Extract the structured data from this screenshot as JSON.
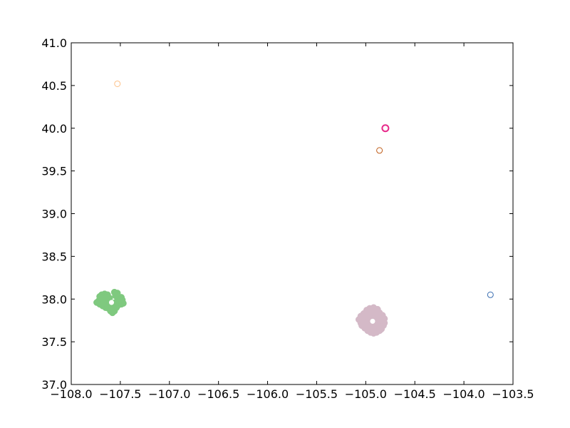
{
  "chart_data": {
    "type": "scatter",
    "title": "",
    "xlabel": "",
    "ylabel": "",
    "xlim": [
      -108.0,
      -103.5
    ],
    "ylim": [
      37.0,
      41.0
    ],
    "xticks": [
      -108.0,
      -107.5,
      -107.0,
      -106.5,
      -106.0,
      -105.5,
      -105.0,
      -104.5,
      -104.0,
      -103.5
    ],
    "yticks": [
      37.0,
      37.5,
      38.0,
      38.5,
      39.0,
      39.5,
      40.0,
      40.5,
      41.0
    ],
    "xtick_labels": [
      "−108.0",
      "−107.5",
      "−107.0",
      "−106.5",
      "−106.0",
      "−105.5",
      "−105.0",
      "−104.5",
      "−104.0",
      "−103.5"
    ],
    "ytick_labels": [
      "37.0",
      "37.5",
      "38.0",
      "38.5",
      "39.0",
      "39.5",
      "40.0",
      "40.5",
      "41.0"
    ],
    "grid": false,
    "legend": "none",
    "series": [
      {
        "color": "#7fc97f",
        "filled": true,
        "points": [
          [
            -107.69,
            38.05
          ],
          [
            -107.66,
            38.06
          ],
          [
            -107.63,
            38.05
          ],
          [
            -107.7,
            38.01
          ],
          [
            -107.72,
            37.98
          ],
          [
            -107.74,
            37.96
          ],
          [
            -107.71,
            37.94
          ],
          [
            -107.68,
            37.92
          ],
          [
            -107.65,
            37.9
          ],
          [
            -107.62,
            37.89
          ],
          [
            -107.6,
            37.86
          ],
          [
            -107.58,
            37.84
          ],
          [
            -107.56,
            37.86
          ],
          [
            -107.54,
            37.9
          ],
          [
            -107.52,
            37.93
          ],
          [
            -107.49,
            37.94
          ],
          [
            -107.47,
            37.95
          ],
          [
            -107.48,
            37.99
          ],
          [
            -107.49,
            38.02
          ],
          [
            -107.51,
            38.0
          ],
          [
            -107.53,
            37.98
          ],
          [
            -107.55,
            38.04
          ],
          [
            -107.53,
            38.07
          ],
          [
            -107.56,
            38.08
          ],
          [
            -107.66,
            37.99
          ],
          [
            -107.64,
            37.97
          ],
          [
            -107.62,
            37.95
          ],
          [
            -107.6,
            37.93
          ],
          [
            -107.57,
            37.95
          ],
          [
            -107.63,
            37.92
          ],
          [
            -107.67,
            37.95
          ],
          [
            -107.58,
            37.91
          ],
          [
            -107.61,
            38.01
          ],
          [
            -107.64,
            38.02
          ],
          [
            -107.55,
            37.96
          ],
          [
            -107.71,
            38.03
          ],
          [
            -107.59,
            37.88
          ]
        ]
      },
      {
        "color": "#d4b9c7",
        "filled": true,
        "points": [
          [
            -105.07,
            37.76
          ],
          [
            -105.05,
            37.72
          ],
          [
            -105.04,
            37.69
          ],
          [
            -105.01,
            37.66
          ],
          [
            -104.98,
            37.63
          ],
          [
            -104.95,
            37.61
          ],
          [
            -104.92,
            37.6
          ],
          [
            -104.89,
            37.61
          ],
          [
            -104.86,
            37.63
          ],
          [
            -104.84,
            37.65
          ],
          [
            -104.82,
            37.69
          ],
          [
            -104.81,
            37.72
          ],
          [
            -104.81,
            37.77
          ],
          [
            -104.83,
            37.81
          ],
          [
            -104.86,
            37.84
          ],
          [
            -104.88,
            37.88
          ],
          [
            -104.92,
            37.9
          ],
          [
            -104.96,
            37.89
          ],
          [
            -104.99,
            37.87
          ],
          [
            -105.02,
            37.83
          ],
          [
            -105.05,
            37.8
          ],
          [
            -104.97,
            37.74
          ],
          [
            -104.94,
            37.7
          ],
          [
            -104.9,
            37.68
          ],
          [
            -104.87,
            37.72
          ],
          [
            -104.89,
            37.77
          ],
          [
            -104.93,
            37.8
          ],
          [
            -104.96,
            37.78
          ],
          [
            -104.99,
            37.7
          ],
          [
            -104.92,
            37.65
          ],
          [
            -104.86,
            37.68
          ],
          [
            -104.84,
            37.75
          ],
          [
            -104.87,
            37.8
          ],
          [
            -104.95,
            37.84
          ],
          [
            -104.98,
            37.66
          ],
          [
            -105.02,
            37.74
          ],
          [
            -104.9,
            37.85
          ],
          [
            -104.85,
            37.64
          ],
          [
            -104.91,
            37.74
          ],
          [
            -105.0,
            37.8
          ]
        ]
      },
      {
        "color": "#fdc086",
        "filled": false,
        "points": [
          [
            -107.53,
            40.52
          ]
        ]
      },
      {
        "color": "#e7298a",
        "filled": false,
        "thick": true,
        "points": [
          [
            -104.8,
            40.0
          ]
        ]
      },
      {
        "color": "#bf5b17",
        "filled": false,
        "points": [
          [
            -104.86,
            39.74
          ]
        ]
      },
      {
        "color": "#386cb0",
        "filled": false,
        "points": [
          [
            -103.73,
            38.05
          ]
        ]
      }
    ],
    "centers": [
      [
        -107.59,
        37.96
      ],
      [
        -104.93,
        37.74
      ]
    ]
  }
}
